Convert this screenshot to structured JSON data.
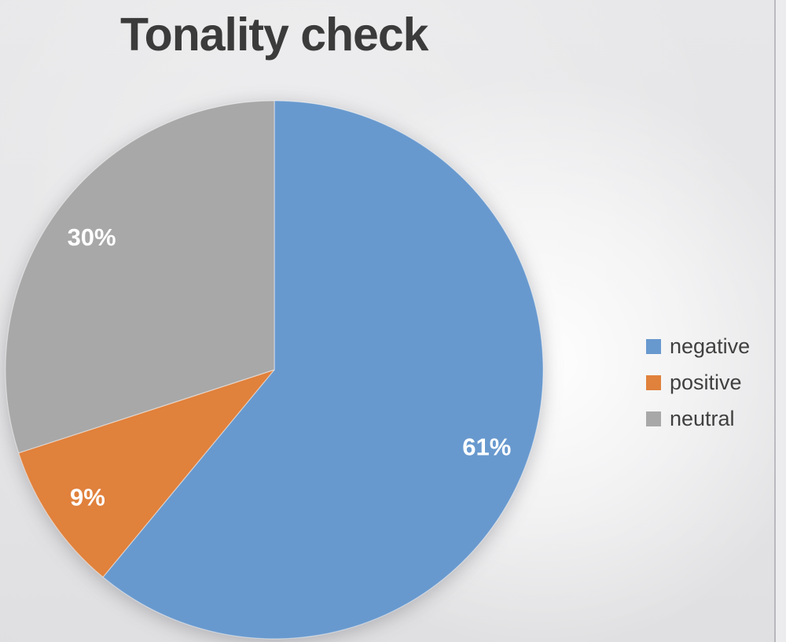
{
  "chart_data": {
    "type": "pie",
    "title": "Tonality check",
    "slices": [
      {
        "label": "negative",
        "value": 61,
        "data_label": "61%",
        "color": "#6899CE"
      },
      {
        "label": "positive",
        "value": 9,
        "data_label": "9%",
        "color": "#E0813C"
      },
      {
        "label": "neutral",
        "value": 30,
        "data_label": "30%",
        "color": "#A8A8A8"
      }
    ],
    "start_angle_deg": 0,
    "direction": "clockwise",
    "data_label_color": "#FFFFFF",
    "legend_position": "right",
    "title_color": "#3B3B3B",
    "legend_text_color": "#404040"
  }
}
